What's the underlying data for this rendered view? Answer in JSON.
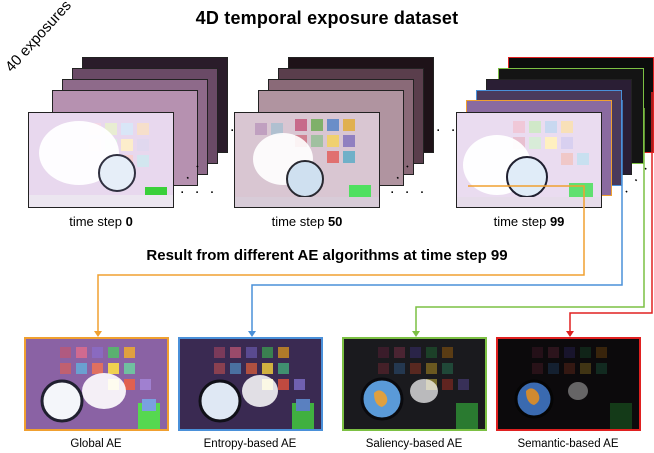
{
  "title": "4D temporal exposure dataset",
  "exposures_label": "40 exposures",
  "time_steps": [
    {
      "prefix": "time step ",
      "value": "0"
    },
    {
      "prefix": "time step ",
      "value": "50"
    },
    {
      "prefix": "time step ",
      "value": "99"
    }
  ],
  "subtitle": "Result from different AE algorithms at time step 99",
  "results": [
    {
      "label": "Global AE",
      "color": "#f0a030"
    },
    {
      "label": "Entropy-based AE",
      "color": "#4a90d9"
    },
    {
      "label": "Saliency-based AE",
      "color": "#7cc043"
    },
    {
      "label": "Semantic-based AE",
      "color": "#e02020"
    }
  ]
}
